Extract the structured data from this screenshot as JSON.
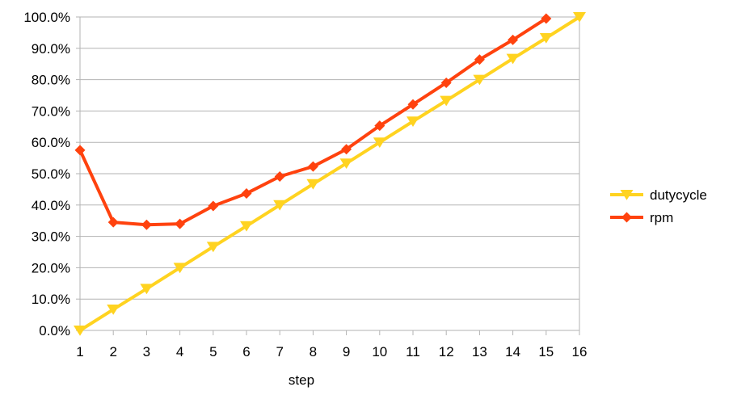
{
  "chart_data": {
    "type": "line",
    "title": "",
    "xlabel": "step",
    "ylabel": "",
    "x": [
      1,
      2,
      3,
      4,
      5,
      6,
      7,
      8,
      9,
      10,
      11,
      12,
      13,
      14,
      15,
      16
    ],
    "x_tick_labels": [
      "1",
      "2",
      "3",
      "4",
      "5",
      "6",
      "7",
      "8",
      "9",
      "10",
      "11",
      "12",
      "13",
      "14",
      "15",
      "16"
    ],
    "ylim": [
      0,
      100
    ],
    "y_ticks": [
      0,
      10,
      20,
      30,
      40,
      50,
      60,
      70,
      80,
      90,
      100
    ],
    "y_tick_labels": [
      "0.0%",
      "10.0%",
      "20.0%",
      "30.0%",
      "40.0%",
      "50.0%",
      "60.0%",
      "70.0%",
      "80.0%",
      "90.0%",
      "100.0%"
    ],
    "grid": "horizontal",
    "legend_position": "right",
    "series": [
      {
        "name": "dutycycle",
        "color": "#FFD320",
        "marker": "triangle-down",
        "values": [
          0.0,
          6.7,
          13.3,
          20.0,
          26.7,
          33.3,
          40.0,
          46.7,
          53.3,
          60.0,
          66.7,
          73.3,
          80.0,
          86.7,
          93.3,
          100.0
        ]
      },
      {
        "name": "rpm",
        "color": "#FF420E",
        "marker": "diamond",
        "values": [
          57.5,
          34.5,
          33.7,
          34.0,
          39.7,
          43.7,
          49.1,
          52.3,
          57.8,
          65.3,
          72.1,
          79.0,
          86.4,
          92.7,
          99.5,
          null
        ]
      }
    ]
  }
}
